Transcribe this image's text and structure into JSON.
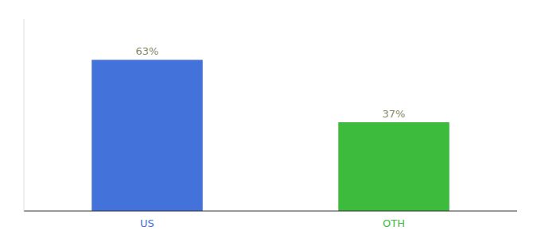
{
  "chart_data": {
    "type": "bar",
    "categories": [
      "US",
      "OTH"
    ],
    "values": [
      63,
      37
    ],
    "value_labels": [
      "63%",
      "37%"
    ],
    "colors": [
      "#4472db",
      "#3dbb3d"
    ],
    "ylim": [
      0,
      80
    ],
    "data_labels": true,
    "tick_labels": "x"
  }
}
